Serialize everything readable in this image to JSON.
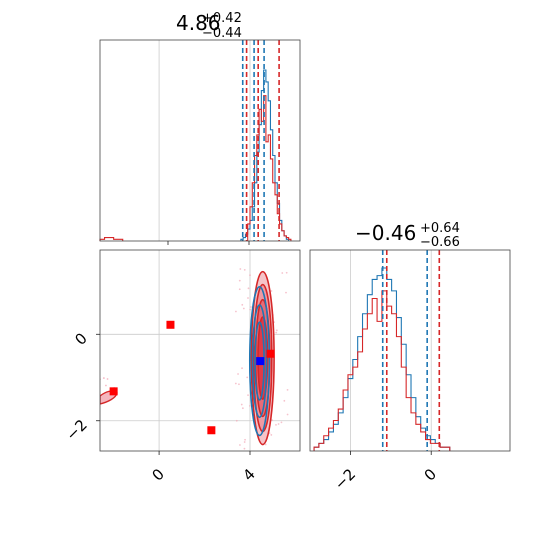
{
  "colors": {
    "blue": "#1f77b4",
    "red": "#d62728",
    "marker_blue": "#0000ff",
    "marker_red": "#ff0000",
    "grid": "#cccccc"
  },
  "chart_data": [
    {
      "type": "histogram",
      "panel": "top-left",
      "title": {
        "main": "4.86",
        "plus": "+0.42",
        "minus": "−0.44"
      },
      "xlim": [
        -2.6,
        6.2
      ],
      "grid": true,
      "ref_lines": [
        0,
        4
      ],
      "series": [
        {
          "color": "blue",
          "bins_start": 3.6,
          "bins_width": 0.1,
          "values": [
            1,
            2,
            4,
            7,
            12,
            20,
            34,
            52,
            68,
            88,
            100,
            93,
            82,
            65,
            50,
            34,
            22,
            12,
            6,
            3,
            1
          ]
        },
        {
          "color": "red",
          "bins_start": 3.9,
          "bins_width": 0.1,
          "values": [
            10,
            20,
            34,
            50,
            62,
            77,
            70,
            85,
            58,
            62,
            48,
            34,
            27,
            16,
            10,
            6,
            3,
            2,
            1
          ],
          "tail": {
            "bins_start": -2.6,
            "bins_width": 0.2,
            "values": [
              1,
              2,
              2,
              1,
              1
            ]
          }
        }
      ],
      "quantiles": [
        {
          "color": "blue",
          "values": [
            3.68,
            4.18,
            4.62
          ]
        },
        {
          "color": "red",
          "values": [
            3.85,
            4.36,
            5.28
          ]
        }
      ]
    },
    {
      "type": "contour",
      "panel": "bottom-left",
      "xlim": [
        -2.6,
        6.2
      ],
      "ylim": [
        -2.7,
        1.95
      ],
      "xticks": [
        "0",
        "4"
      ],
      "yticks": [
        "0",
        "−2"
      ],
      "xtick_values": [
        0,
        4
      ],
      "ytick_values": [
        0,
        -2
      ],
      "grid": true,
      "contours": [
        {
          "color": "red",
          "center": [
            4.56,
            -0.55
          ],
          "levels": [
            {
              "rx": 1.0,
              "ry": 2.0
            },
            {
              "rx": 0.8,
              "ry": 1.7
            },
            {
              "rx": 0.62,
              "ry": 1.35
            },
            {
              "rx": 0.42,
              "ry": 0.95
            }
          ]
        },
        {
          "color": "blue",
          "center": [
            4.42,
            -0.62
          ],
          "levels": [
            {
              "rx": 0.86,
              "ry": 1.72
            },
            {
              "rx": 0.62,
              "ry": 1.3
            },
            {
              "rx": 0.4,
              "ry": 0.9
            }
          ]
        }
      ],
      "markers": [
        {
          "color": "marker_red",
          "x": -2.0,
          "y": -1.32
        },
        {
          "color": "marker_red",
          "x": 0.5,
          "y": 0.22
        },
        {
          "color": "marker_red",
          "x": 2.3,
          "y": -2.22
        },
        {
          "color": "marker_red",
          "x": 4.9,
          "y": -0.45
        },
        {
          "color": "marker_blue",
          "x": 4.45,
          "y": -0.62
        }
      ],
      "tail_cloud": {
        "color": "red",
        "center": [
          -2.3,
          -1.4
        ]
      }
    },
    {
      "type": "histogram",
      "panel": "bottom-right",
      "title": {
        "main": "−0.46",
        "plus": "+0.64",
        "minus": "−0.66"
      },
      "xlim": [
        -3.0,
        1.95
      ],
      "xticks": [
        "−2",
        "0"
      ],
      "xtick_values": [
        -2,
        0
      ],
      "grid": true,
      "ref_lines": [
        -2,
        0
      ],
      "series": [
        {
          "color": "blue",
          "bins_start": -2.9,
          "bins_width": 0.12,
          "values": [
            1,
            2,
            3,
            5,
            7,
            10,
            14,
            19,
            24,
            30,
            36,
            41,
            45,
            46,
            48,
            45,
            42,
            35,
            28,
            20,
            14,
            9,
            6,
            4,
            3,
            2,
            1,
            1
          ]
        },
        {
          "color": "red",
          "bins_start": -2.9,
          "bins_width": 0.12,
          "values": [
            1,
            2,
            4,
            6,
            8,
            11,
            16,
            20,
            22,
            26,
            32,
            36,
            40,
            34,
            42,
            38,
            36,
            30,
            22,
            14,
            10,
            7,
            5,
            3,
            2,
            2,
            1,
            1
          ]
        }
      ],
      "quantiles": [
        {
          "color": "blue",
          "values": [
            -1.2,
            -0.1
          ]
        },
        {
          "color": "red",
          "values": [
            -1.1,
            0.2
          ]
        }
      ]
    }
  ]
}
